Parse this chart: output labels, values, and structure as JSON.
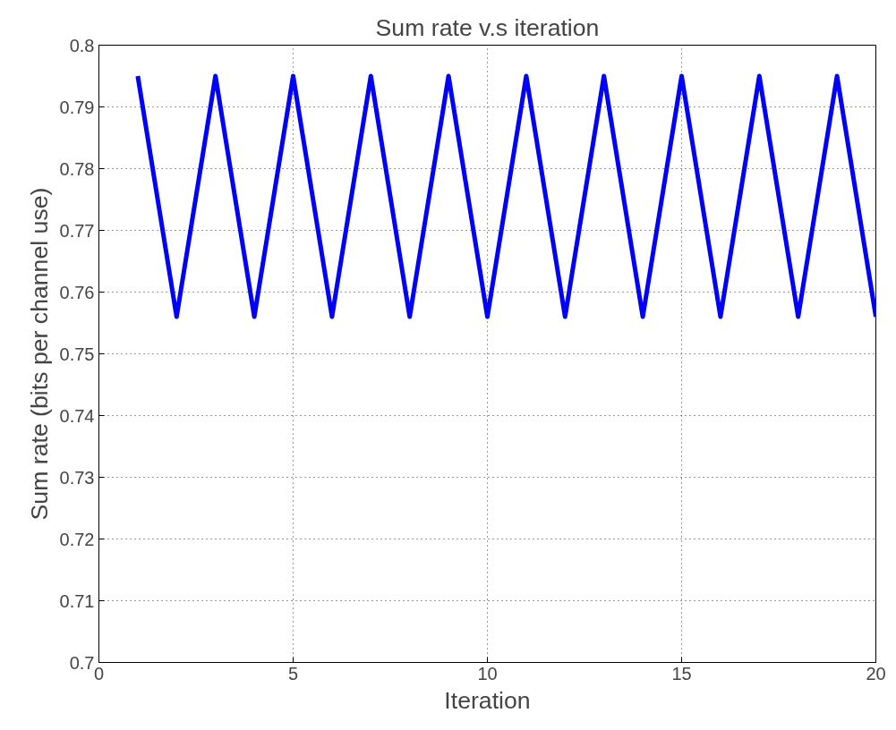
{
  "chart_data": {
    "type": "line",
    "title": "Sum rate v.s iteration",
    "xlabel": "Iteration",
    "ylabel": "Sum rate (bits per channel use)",
    "x": [
      1,
      2,
      3,
      4,
      5,
      6,
      7,
      8,
      9,
      10,
      11,
      12,
      13,
      14,
      15,
      16,
      17,
      18,
      19,
      20
    ],
    "series": [
      {
        "color": "#0000ff",
        "values": [
          0.795,
          0.756,
          0.795,
          0.756,
          0.795,
          0.756,
          0.795,
          0.756,
          0.795,
          0.756,
          0.795,
          0.756,
          0.795,
          0.756,
          0.795,
          0.756,
          0.795,
          0.756,
          0.795,
          0.756
        ]
      }
    ],
    "xlim": [
      0,
      20
    ],
    "ylim": [
      0.7,
      0.8
    ],
    "xticks": [
      0,
      5,
      10,
      15,
      20
    ],
    "yticks": [
      0.7,
      0.71,
      0.72,
      0.73,
      0.74,
      0.75,
      0.76,
      0.77,
      0.78,
      0.79,
      0.8
    ],
    "grid": true,
    "line_style": "solid"
  }
}
